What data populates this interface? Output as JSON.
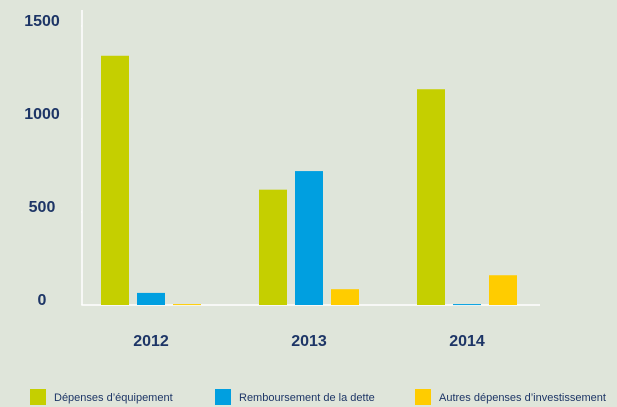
{
  "chart_data": {
    "type": "bar",
    "categories": [
      "2012",
      "2013",
      "2014"
    ],
    "series": [
      {
        "name": "Dépenses d’équipement",
        "color": "#c5cf00",
        "values": [
          1340,
          620,
          1160
        ]
      },
      {
        "name": "Remboursement de la dette",
        "color": "#009fe0",
        "values": [
          65,
          720,
          5
        ]
      },
      {
        "name": "Autres dépenses d’investissement",
        "color": "#ffcc00",
        "values": [
          5,
          85,
          160
        ]
      }
    ],
    "ylim": [
      0,
      1500
    ],
    "yticks": [
      0,
      500,
      1000,
      1500
    ],
    "grid": false,
    "legend": "bottom"
  }
}
